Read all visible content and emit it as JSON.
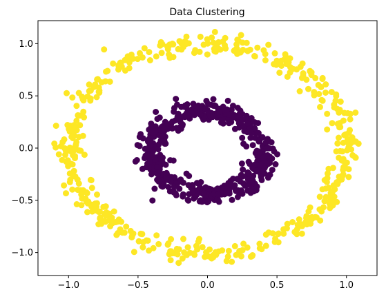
{
  "chart_data": {
    "type": "scatter",
    "title": "Data Clustering",
    "xlabel": "",
    "ylabel": "",
    "xlim": [
      -1.22,
      1.22
    ],
    "ylim": [
      -1.22,
      1.22
    ],
    "x_ticks": [
      -1.0,
      -0.5,
      0.0,
      0.5,
      1.0
    ],
    "x_tick_labels": [
      "−1.0",
      "−0.5",
      "0.0",
      "0.5",
      "1.0"
    ],
    "y_ticks": [
      1.0,
      0.5,
      0.0,
      -0.5,
      -1.0
    ],
    "y_tick_labels": [
      "1.0",
      "0.5",
      "0.0",
      "−0.5",
      "−1.0"
    ],
    "grid": false,
    "legend": false,
    "series": [
      {
        "color": "#440154",
        "shape": "ring",
        "center": [
          0.0,
          -0.05
        ],
        "radius": 0.4,
        "noise": 0.05,
        "count": 500
      },
      {
        "color": "#fde725",
        "shape": "ring",
        "center": [
          0.0,
          0.0
        ],
        "radius": 1.0,
        "noise": 0.05,
        "count": 500
      }
    ]
  }
}
